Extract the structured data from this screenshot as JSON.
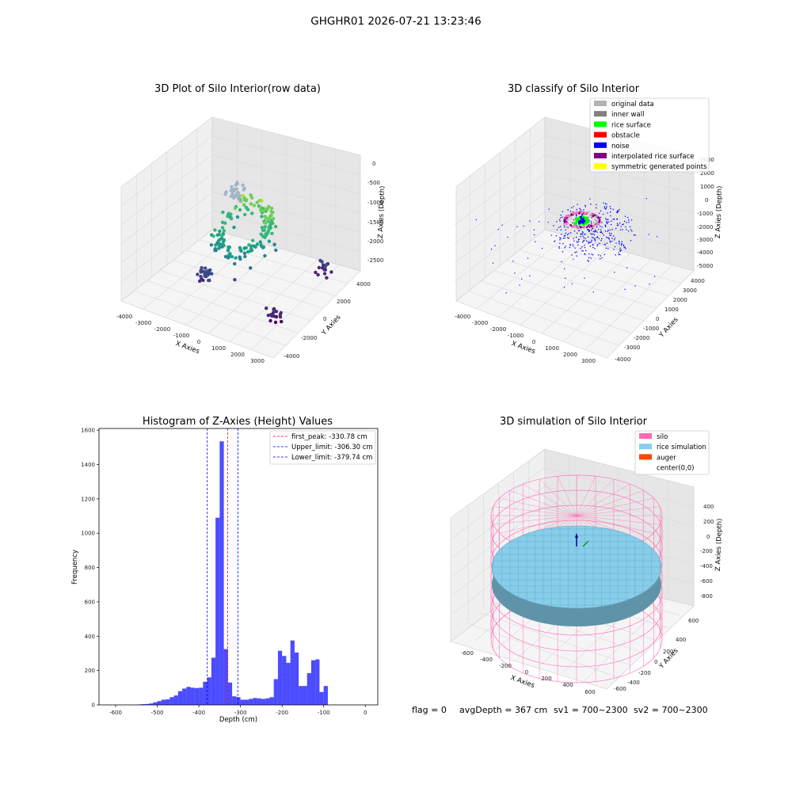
{
  "figure": {
    "suptitle": "GHGHR01 2026-07-21 13:23:46",
    "footer": {
      "flag": "flag = 0",
      "avg_depth": "avgDepth = 367 cm",
      "sv1": "sv1 = 700~2300",
      "sv2": "sv2 = 700~2300"
    }
  },
  "chart_data": [
    {
      "type": "scatter",
      "projection": "3d",
      "title": "3D Plot of Silo Interior(row data)",
      "xlabel": "X Axies",
      "ylabel": "Y Axies",
      "zlabel": "Z Axies (Depth)",
      "x_ticks": [
        "-4000",
        "-3000",
        "-2000",
        "-1000",
        "0",
        "1000",
        "2000",
        "3000"
      ],
      "y_ticks": [
        "4000",
        "2000",
        "0",
        "-2000",
        "-4000"
      ],
      "z_ticks": [
        "0",
        "-500",
        "-1000",
        "-1500",
        "-2000",
        "-2500"
      ],
      "colormap": "viridis",
      "clusters": [
        {
          "x": -300,
          "y": 0,
          "z": -1300,
          "count": 150
        },
        {
          "x": -2000,
          "y": 2500,
          "z": -1200,
          "count": 30
        },
        {
          "x": 2500,
          "y": 2500,
          "z": -2500,
          "count": 15
        },
        {
          "x": -1500,
          "y": -1500,
          "z": -2400,
          "count": 25
        },
        {
          "x": 2300,
          "y": -2000,
          "z": -2700,
          "count": 18
        }
      ]
    },
    {
      "type": "scatter",
      "projection": "3d",
      "title": "3D classify of Silo Interior",
      "xlabel": "X Axies",
      "ylabel": "Y Axies",
      "zlabel": "Z Axies (Depth)",
      "x_ticks": [
        "-4000",
        "-3000",
        "-2000",
        "-1000",
        "0",
        "1000",
        "2000",
        "3000"
      ],
      "y_ticks": [
        "4000",
        "3000",
        "2000",
        "1000",
        "0",
        "-1000",
        "-2000",
        "-3000",
        "-4000"
      ],
      "z_ticks": [
        "3000",
        "2000",
        "1000",
        "0",
        "-1000",
        "-2000",
        "-3000",
        "-4000",
        "-5000"
      ],
      "legend": [
        {
          "label": "original data",
          "color": "#b3b3b3"
        },
        {
          "label": "inner wall",
          "color": "#808080"
        },
        {
          "label": "rice surface",
          "color": "#00ff00"
        },
        {
          "label": "obstacle",
          "color": "#ff0000"
        },
        {
          "label": "noise",
          "color": "#0000ff"
        },
        {
          "label": "interpolated rice surface",
          "color": "#800080"
        },
        {
          "label": "symmetric generated points",
          "color": "#ffff00"
        }
      ]
    },
    {
      "type": "bar",
      "title": "Histogram of Z-Axies (Height) Values",
      "xlabel": "Depth (cm)",
      "ylabel": "Frequency",
      "xlim": [
        -640,
        30
      ],
      "ylim": [
        0,
        1610
      ],
      "x_ticks": [
        "-600",
        "-500",
        "-400",
        "-300",
        "-200",
        "-100",
        "0"
      ],
      "y_ticks": [
        "0",
        "200",
        "400",
        "600",
        "800",
        "1000",
        "1200",
        "1400",
        "1600"
      ],
      "bin_width": 10,
      "bin_starts": [
        -610,
        -600,
        -590,
        -580,
        -570,
        -560,
        -550,
        -540,
        -530,
        -520,
        -510,
        -500,
        -490,
        -480,
        -470,
        -460,
        -450,
        -440,
        -430,
        -420,
        -410,
        -400,
        -390,
        -380,
        -370,
        -360,
        -350,
        -340,
        -330,
        -320,
        -310,
        -300,
        -290,
        -280,
        -270,
        -260,
        -250,
        -240,
        -230,
        -220,
        -210,
        -200,
        -190,
        -180,
        -170,
        -160,
        -150,
        -140,
        -130,
        -120,
        -110,
        -100,
        -90,
        -80,
        -70,
        -60,
        -50,
        -40,
        -30,
        -20,
        -10
      ],
      "values": [
        0,
        0,
        0,
        0,
        0,
        0,
        2,
        4,
        5,
        8,
        15,
        22,
        30,
        32,
        45,
        55,
        80,
        95,
        105,
        100,
        98,
        100,
        135,
        160,
        275,
        1090,
        1535,
        325,
        130,
        50,
        45,
        30,
        30,
        35,
        40,
        38,
        35,
        38,
        45,
        150,
        315,
        285,
        245,
        375,
        305,
        110,
        110,
        185,
        260,
        265,
        75,
        110,
        0,
        0,
        0,
        0,
        0,
        0,
        0,
        0,
        0
      ],
      "bar_color": "#0000ff",
      "bar_alpha": 0.7,
      "vlines": [
        {
          "x": -330.78,
          "label": "first_peak: -330.78 cm",
          "color": "#ff0000"
        },
        {
          "x": -306.3,
          "label": "Upper_limit: -306.30 cm",
          "color": "#0000ff"
        },
        {
          "x": -379.74,
          "label": "Lower_limit: -379.74 cm",
          "color": "#0000ff"
        }
      ],
      "legend_position": "top-right"
    },
    {
      "type": "surface",
      "projection": "3d",
      "title": "3D simulation of Silo Interior",
      "xlabel": "X Axies",
      "ylabel": "Y Axies",
      "zlabel": "Z Axies (Depth)",
      "x_ticks": [
        "-600",
        "-400",
        "-200",
        "0",
        "200",
        "400",
        "600"
      ],
      "y_ticks": [
        "600",
        "400",
        "200",
        "0",
        "-200",
        "-400",
        "-600"
      ],
      "z_ticks": [
        "400",
        "200",
        "0",
        "-200",
        "-400",
        "-600",
        "-800"
      ],
      "legend": [
        {
          "label": "silo",
          "color": "#ff69b4"
        },
        {
          "label": "rice simulation",
          "color": "#87ceeb"
        },
        {
          "label": "auger",
          "color": "#ff4500"
        },
        {
          "label": "center(0,0)",
          "color": ""
        }
      ]
    }
  ]
}
